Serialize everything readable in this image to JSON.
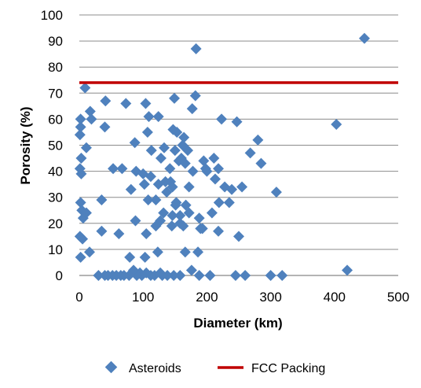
{
  "chart_data": {
    "type": "scatter",
    "xlabel": "Diameter (km)",
    "ylabel": "Porosity (%)",
    "xlim": [
      0,
      500
    ],
    "ylim": [
      0,
      100
    ],
    "xticks": [
      0,
      100,
      200,
      300,
      400,
      500
    ],
    "yticks": [
      0,
      10,
      20,
      30,
      40,
      50,
      60,
      70,
      80,
      90,
      100
    ],
    "grid": "horizontal",
    "legend_position": "bottom",
    "series": [
      {
        "name": "Asteroids",
        "kind": "scatter",
        "marker": "diamond",
        "color": "#4F81BD",
        "points": [
          [
            9,
            72
          ],
          [
            2,
            60
          ],
          [
            2,
            57
          ],
          [
            1,
            54
          ],
          [
            19,
            60
          ],
          [
            17,
            63
          ],
          [
            40,
            57
          ],
          [
            41,
            67
          ],
          [
            11,
            49
          ],
          [
            3,
            45
          ],
          [
            1,
            41
          ],
          [
            3,
            39
          ],
          [
            2,
            28
          ],
          [
            4,
            25
          ],
          [
            6,
            22
          ],
          [
            11,
            24
          ],
          [
            1,
            15
          ],
          [
            5,
            14
          ],
          [
            16,
            9
          ],
          [
            2,
            7
          ],
          [
            30,
            0
          ],
          [
            35,
            29
          ],
          [
            35,
            17
          ],
          [
            53,
            41
          ],
          [
            62,
            16
          ],
          [
            67,
            41
          ],
          [
            73,
            66
          ],
          [
            81,
            33
          ],
          [
            87,
            51
          ],
          [
            89,
            40
          ],
          [
            88,
            21
          ],
          [
            79,
            7
          ],
          [
            100,
            39
          ],
          [
            102,
            35
          ],
          [
            107,
            55
          ],
          [
            104,
            66
          ],
          [
            109,
            61
          ],
          [
            113,
            48
          ],
          [
            112,
            38
          ],
          [
            108,
            29
          ],
          [
            120,
            29
          ],
          [
            120,
            19
          ],
          [
            105,
            16
          ],
          [
            103,
            7
          ],
          [
            95,
            1
          ],
          [
            124,
            61
          ],
          [
            124,
            35
          ],
          [
            128,
            45
          ],
          [
            123,
            9
          ],
          [
            133,
            49
          ],
          [
            135,
            36
          ],
          [
            142,
            41
          ],
          [
            143,
            36
          ],
          [
            137,
            32
          ],
          [
            146,
            34
          ],
          [
            151,
            27
          ],
          [
            146,
            23
          ],
          [
            149,
            68
          ],
          [
            153,
            55
          ],
          [
            147,
            56
          ],
          [
            150,
            48
          ],
          [
            156,
            44
          ],
          [
            162,
            50
          ],
          [
            164,
            53
          ],
          [
            167,
            27
          ],
          [
            172,
            34
          ],
          [
            172,
            24
          ],
          [
            158,
            20
          ],
          [
            163,
            19
          ],
          [
            166,
            43
          ],
          [
            166,
            9
          ],
          [
            177,
            64
          ],
          [
            182,
            69
          ],
          [
            183,
            87
          ],
          [
            188,
            22
          ],
          [
            190,
            18
          ],
          [
            193,
            18
          ],
          [
            198,
            41
          ],
          [
            195,
            44
          ],
          [
            200,
            40
          ],
          [
            211,
            45
          ],
          [
            218,
            41
          ],
          [
            223,
            60
          ],
          [
            228,
            34
          ],
          [
            235,
            28
          ],
          [
            213,
            37
          ],
          [
            219,
            28
          ],
          [
            208,
            24
          ],
          [
            218,
            17
          ],
          [
            239,
            33
          ],
          [
            247,
            59
          ],
          [
            250,
            15
          ],
          [
            255,
            34
          ],
          [
            268,
            47
          ],
          [
            280,
            52
          ],
          [
            285,
            43
          ],
          [
            309,
            32
          ],
          [
            403,
            58
          ],
          [
            447,
            91
          ],
          [
            420,
            2
          ],
          [
            245,
            0
          ],
          [
            260,
            0
          ],
          [
            300,
            0
          ],
          [
            318,
            0
          ],
          [
            188,
            0
          ],
          [
            205,
            0
          ],
          [
            176,
            2
          ],
          [
            158,
            0
          ],
          [
            148,
            0
          ],
          [
            138,
            0
          ],
          [
            130,
            0
          ],
          [
            127,
            1
          ],
          [
            118,
            0
          ],
          [
            112,
            0
          ],
          [
            105,
            1
          ],
          [
            98,
            0
          ],
          [
            90,
            0
          ],
          [
            85,
            2
          ],
          [
            78,
            0
          ],
          [
            70,
            0
          ],
          [
            65,
            0
          ],
          [
            58,
            0
          ],
          [
            52,
            0
          ],
          [
            45,
            0
          ],
          [
            40,
            0
          ],
          [
            158,
            23
          ],
          [
            145,
            19
          ],
          [
            152,
            28
          ],
          [
            132,
            24
          ],
          [
            127,
            21
          ],
          [
            160,
            45
          ],
          [
            170,
            48
          ],
          [
            178,
            40
          ],
          [
            186,
            9
          ]
        ]
      },
      {
        "name": "FCC Packing",
        "kind": "line",
        "color": "#C00000",
        "y": 74
      }
    ]
  }
}
